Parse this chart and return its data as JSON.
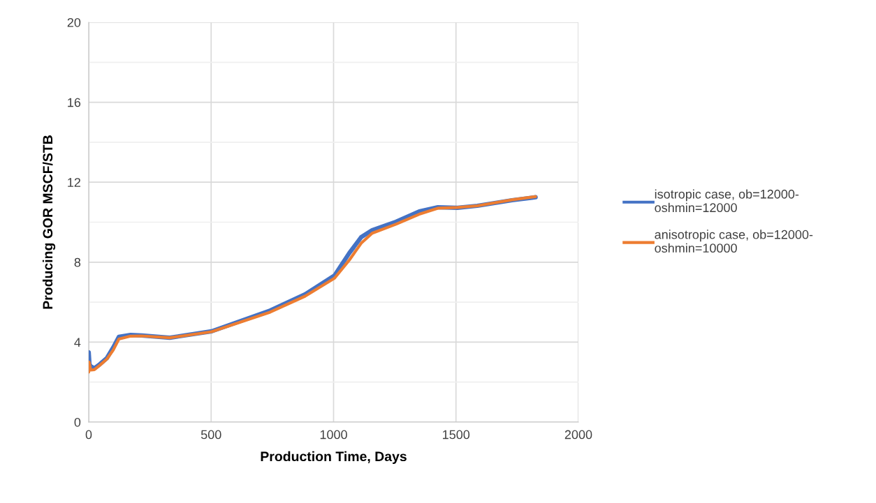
{
  "chart_data": {
    "type": "line",
    "xlabel": "Production Time, Days",
    "ylabel": "Producing GOR MSCF/STB",
    "xlim": [
      0,
      2000
    ],
    "xticks": [
      0,
      500,
      1000,
      1500,
      2000
    ],
    "ylim": [
      0,
      20
    ],
    "yticks": [
      0,
      {
        "value": 2,
        "label": null
      },
      4,
      {
        "value": 6,
        "label": null
      },
      8,
      {
        "value": 10,
        "label": null
      },
      12,
      {
        "value": 14,
        "label": null
      },
      16,
      {
        "value": 18,
        "label": null
      },
      20
    ],
    "grid": true,
    "legend": "right",
    "line_style": "solid",
    "marker": "none",
    "series": [
      {
        "name": "isotropic case, ob=12000-oshmin=12000",
        "color": "#4472c4",
        "x": [
          0,
          3,
          8,
          23,
          46,
          74,
          100,
          123,
          171,
          217,
          331,
          502,
          741,
          884,
          1004,
          1064,
          1113,
          1158,
          1255,
          1350,
          1426,
          1506,
          1587,
          1729,
          1825
        ],
        "values": [
          3.49,
          2.9,
          2.79,
          2.69,
          2.9,
          3.2,
          3.73,
          4.26,
          4.36,
          4.33,
          4.22,
          4.54,
          5.58,
          6.39,
          7.33,
          8.45,
          9.25,
          9.6,
          10.02,
          10.54,
          10.75,
          10.72,
          10.82,
          11.1,
          11.25
        ]
      },
      {
        "name": "anisotropic case, ob=12000-oshmin=10000",
        "color": "#ed7d31",
        "x": [
          0,
          2,
          8,
          23,
          46,
          74,
          100,
          123,
          171,
          217,
          331,
          502,
          741,
          884,
          1004,
          1064,
          1113,
          1158,
          1255,
          1350,
          1426,
          1506,
          1587,
          1729,
          1825
        ],
        "values": [
          2.5,
          3.0,
          2.6,
          2.62,
          2.85,
          3.15,
          3.6,
          4.15,
          4.3,
          4.31,
          4.22,
          4.52,
          5.5,
          6.3,
          7.2,
          8.1,
          8.95,
          9.45,
          9.9,
          10.4,
          10.7,
          10.74,
          10.82,
          11.12,
          11.28
        ]
      }
    ]
  }
}
